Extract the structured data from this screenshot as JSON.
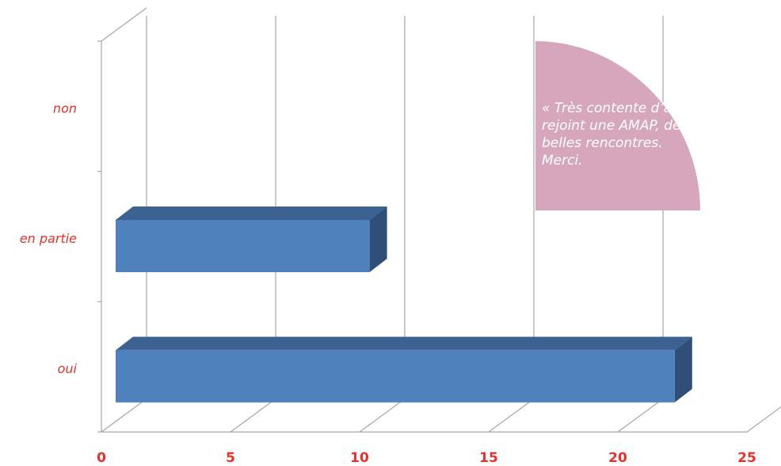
{
  "chart_data": {
    "type": "bar",
    "orientation": "horizontal",
    "style": "3d",
    "categories": [
      "non",
      "en partie",
      "oui"
    ],
    "values": [
      0,
      11,
      23
    ],
    "xlim": [
      0,
      25
    ],
    "xticks": [
      "0",
      "5",
      "10",
      "15",
      "20",
      "25"
    ],
    "grid": true,
    "colors": {
      "bar_front": "#4f81bd",
      "bar_top": "#3b6291",
      "bar_side": "#2f4f78",
      "labels": "#e8312a",
      "callout": "#d6a6bc"
    }
  },
  "callout": {
    "text": "« Très contente d’avoir rejoint une AMAP, de belles rencontres. Merci."
  }
}
